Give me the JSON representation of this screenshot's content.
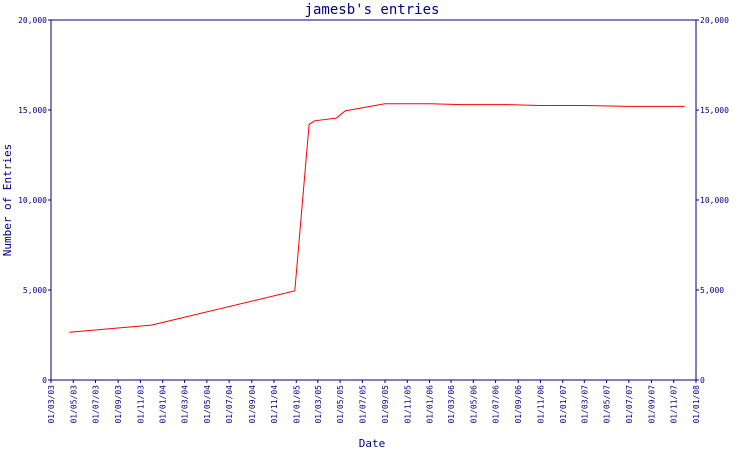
{
  "chart_data": {
    "type": "line",
    "title": "jamesb's entries",
    "xlabel": "Date",
    "ylabel": "Number of Entries",
    "ylim": [
      0,
      20000
    ],
    "y_ticks": [
      0,
      5000,
      10000,
      15000,
      20000
    ],
    "y_tick_labels": [
      "0",
      "5,000",
      "10,000",
      "15,000",
      "20,000"
    ],
    "x_tick_labels": [
      "01/03/03",
      "01/05/03",
      "01/07/03",
      "01/09/03",
      "01/11/03",
      "01/01/04",
      "01/03/04",
      "01/05/04",
      "01/07/04",
      "01/09/04",
      "01/11/04",
      "01/01/05",
      "01/03/05",
      "01/05/05",
      "01/07/05",
      "01/09/05",
      "01/11/05",
      "01/01/06",
      "01/03/06",
      "01/05/06",
      "01/07/06",
      "01/09/06",
      "01/11/06",
      "01/01/07",
      "01/03/07",
      "01/05/07",
      "01/07/07",
      "01/09/07",
      "01/11/07",
      "01/01/08"
    ],
    "series": [
      {
        "color": "#ff0000",
        "x": [
          "2003-04-20",
          "2003-12-01",
          "2004-12-28",
          "2005-02-05",
          "2005-02-20",
          "2005-04-20",
          "2005-05-15",
          "2005-09-01",
          "2006-01-01",
          "2006-04-01",
          "2006-08-01",
          "2006-11-01",
          "2007-03-01",
          "2007-07-01",
          "2007-12-01"
        ],
        "values": [
          2650,
          3050,
          4950,
          14200,
          14400,
          14550,
          14950,
          15350,
          15350,
          15300,
          15300,
          15250,
          15250,
          15200,
          15200
        ]
      }
    ],
    "grid": false,
    "legend": "none",
    "colors": {
      "axis": "#000080",
      "line": "#ff0000",
      "background": "#ffffff"
    }
  }
}
